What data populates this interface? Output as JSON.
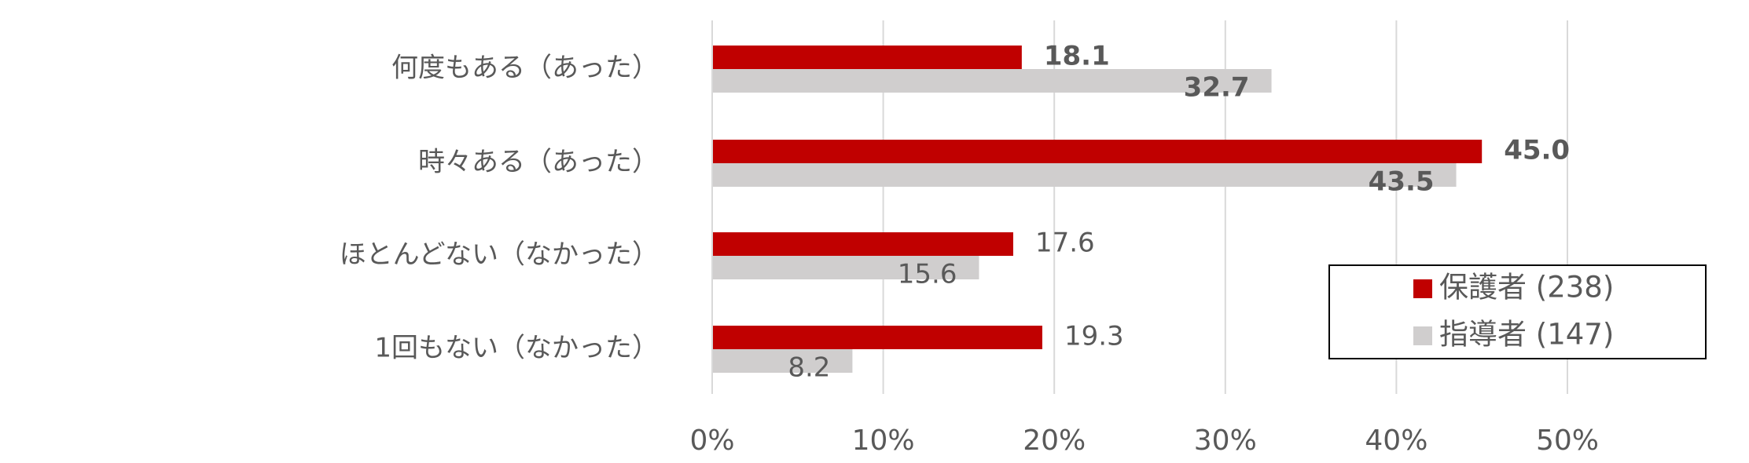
{
  "chart_data": {
    "type": "bar",
    "orientation": "horizontal",
    "categories": [
      "何度もある（あった）",
      "時々ある（あった）",
      "ほとんどない（なかった）",
      "1回もない（なかった）"
    ],
    "series": [
      {
        "name": "保護者 (238)",
        "color": "#c00000",
        "values": [
          18.1,
          45.0,
          17.6,
          19.3
        ],
        "value_labels": [
          "18.1",
          "45.0",
          "17.6",
          "19.3"
        ]
      },
      {
        "name": "指導者 (147)",
        "color": "#d0cece",
        "values": [
          32.7,
          43.5,
          15.6,
          8.2
        ],
        "value_labels": [
          "32.7",
          "43.5",
          "15.6",
          "8.2"
        ]
      }
    ],
    "xlim": [
      0,
      50
    ],
    "xticks": [
      {
        "value": 0,
        "label": "0%"
      },
      {
        "value": 10,
        "label": "10%"
      },
      {
        "value": 20,
        "label": "20%"
      },
      {
        "value": 30,
        "label": "30%"
      },
      {
        "value": 40,
        "label": "40%"
      },
      {
        "value": 50,
        "label": "50%"
      }
    ],
    "grid": true,
    "legend": "lower right"
  }
}
